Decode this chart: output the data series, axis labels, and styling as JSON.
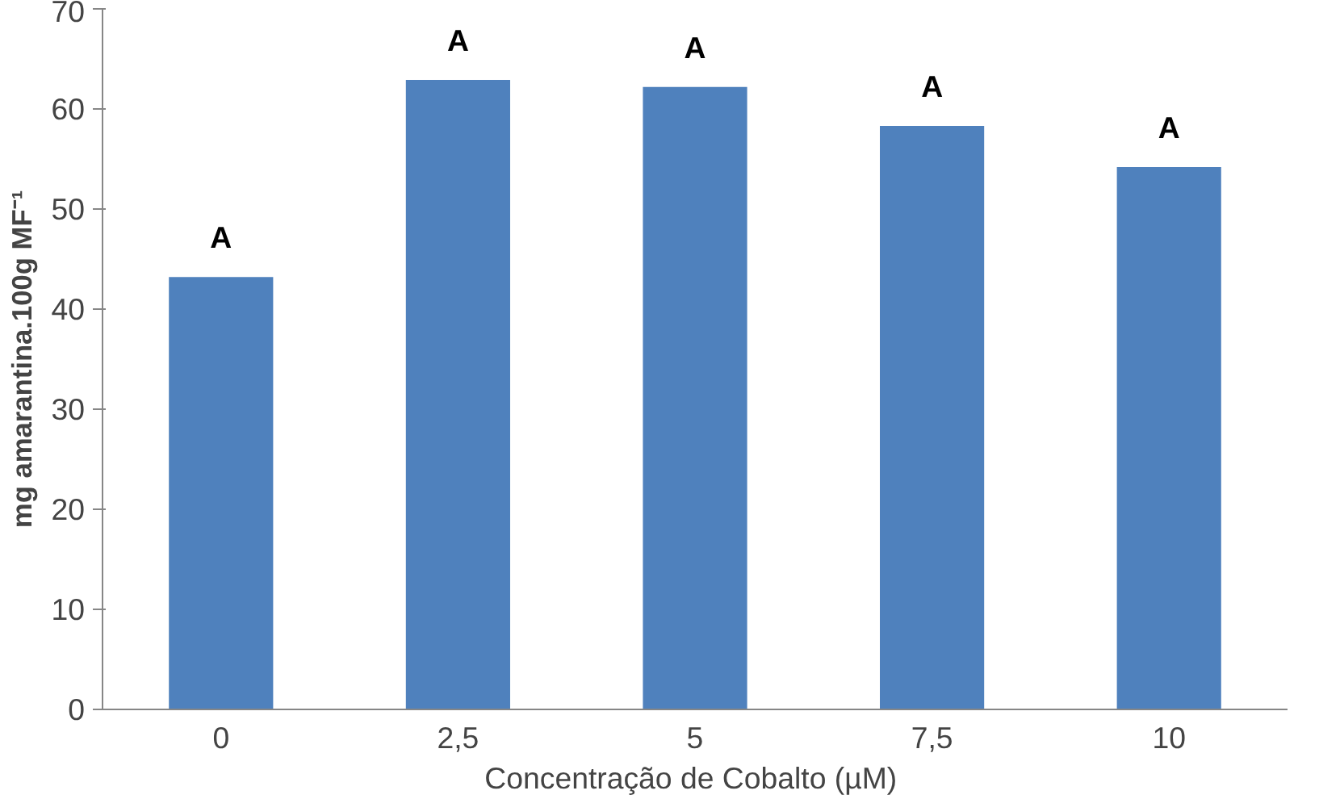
{
  "chart_data": {
    "type": "bar",
    "xlabel": "Concentração de Cobalto  (µM)",
    "ylabel": "mg amarantina.100g MF⁻¹",
    "categories": [
      "0",
      "2,5",
      "5",
      "7,5",
      "10"
    ],
    "series": [
      {
        "color": "#4f81bd",
        "values": [
          43.2,
          62.9,
          62.2,
          58.3,
          54.2
        ]
      }
    ],
    "ylim": [
      0,
      70
    ],
    "yticks": [
      0,
      10,
      20,
      30,
      40,
      50,
      60,
      70
    ],
    "grid": false,
    "annotations": [
      {
        "text": "A",
        "x": "0",
        "y": 43.2
      },
      {
        "text": "A",
        "x": "2,5",
        "y": 62.9
      },
      {
        "text": "A",
        "x": "5",
        "y": 62.2
      },
      {
        "text": "A",
        "x": "7,5",
        "y": 58.3
      },
      {
        "text": "A",
        "x": "10",
        "y": 54.2
      }
    ]
  }
}
